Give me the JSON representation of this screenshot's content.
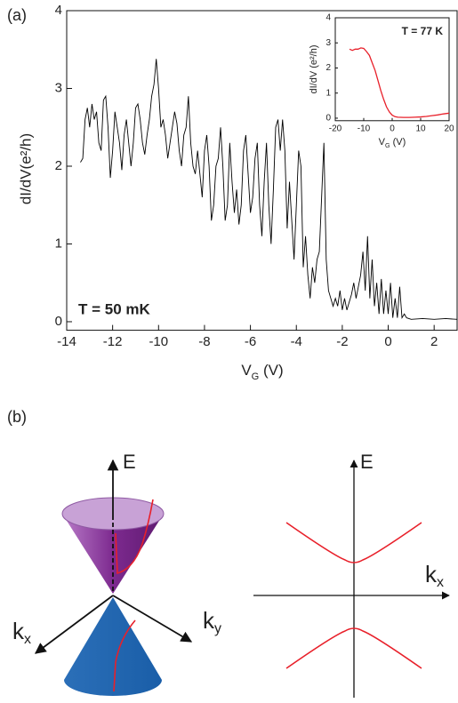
{
  "panel_labels": [
    "(a)",
    "(b)"
  ],
  "chart_data": [
    {
      "type": "line",
      "y_label": "dI/dV(e²/h)",
      "x_label": [
        "V",
        "G",
        " (V)"
      ],
      "annotation": "T = 50 mK",
      "xlim": [
        -14,
        3
      ],
      "ylim": [
        -0.11,
        4
      ],
      "xticks": [
        -14,
        -12,
        -10,
        -8,
        -6,
        -4,
        -2,
        0,
        2
      ],
      "yticks": [
        0,
        1,
        2,
        3,
        4
      ],
      "series": [
        {
          "color": "#000000",
          "x": [
            -13.4,
            -13.3,
            -13.2,
            -13.1,
            -13.0,
            -12.9,
            -12.8,
            -12.7,
            -12.6,
            -12.5,
            -12.4,
            -12.3,
            -12.2,
            -12.1,
            -12.0,
            -11.9,
            -11.8,
            -11.7,
            -11.6,
            -11.5,
            -11.4,
            -11.3,
            -11.2,
            -11.1,
            -11.0,
            -10.9,
            -10.8,
            -10.7,
            -10.6,
            -10.5,
            -10.4,
            -10.3,
            -10.2,
            -10.1,
            -10.0,
            -9.9,
            -9.8,
            -9.7,
            -9.6,
            -9.5,
            -9.4,
            -9.3,
            -9.2,
            -9.1,
            -9.0,
            -8.9,
            -8.8,
            -8.7,
            -8.6,
            -8.5,
            -8.4,
            -8.3,
            -8.2,
            -8.1,
            -8.0,
            -7.9,
            -7.8,
            -7.7,
            -7.6,
            -7.5,
            -7.4,
            -7.3,
            -7.2,
            -7.1,
            -7.0,
            -6.9,
            -6.8,
            -6.7,
            -6.6,
            -6.5,
            -6.4,
            -6.3,
            -6.2,
            -6.1,
            -6.0,
            -5.9,
            -5.8,
            -5.7,
            -5.6,
            -5.5,
            -5.4,
            -5.3,
            -5.2,
            -5.1,
            -5.0,
            -4.9,
            -4.8,
            -4.7,
            -4.6,
            -4.5,
            -4.4,
            -4.3,
            -4.2,
            -4.1,
            -4.0,
            -3.9,
            -3.8,
            -3.7,
            -3.6,
            -3.5,
            -3.4,
            -3.3,
            -3.2,
            -3.1,
            -3.0,
            -2.9,
            -2.8,
            -2.7,
            -2.6,
            -2.5,
            -2.4,
            -2.3,
            -2.2,
            -2.1,
            -2.0,
            -1.9,
            -1.8,
            -1.7,
            -1.6,
            -1.5,
            -1.4,
            -1.3,
            -1.2,
            -1.1,
            -1.0,
            -0.9,
            -0.8,
            -0.7,
            -0.6,
            -0.5,
            -0.4,
            -0.3,
            -0.2,
            -0.1,
            0.0,
            0.1,
            0.2,
            0.3,
            0.4,
            0.5,
            0.6,
            0.7,
            0.8,
            1.0,
            1.5,
            2.0,
            2.5,
            3.0
          ],
          "values": [
            2.05,
            2.1,
            2.6,
            2.75,
            2.5,
            2.8,
            2.6,
            2.7,
            2.3,
            2.2,
            2.85,
            2.9,
            2.5,
            1.85,
            2.2,
            2.7,
            2.5,
            2.3,
            1.95,
            2.4,
            2.6,
            2.3,
            2.0,
            2.3,
            2.75,
            2.8,
            2.6,
            2.3,
            2.15,
            2.4,
            2.6,
            2.9,
            3.05,
            3.38,
            3.0,
            2.5,
            2.6,
            2.4,
            2.1,
            2.3,
            2.5,
            2.7,
            2.55,
            2.2,
            2.0,
            2.4,
            2.5,
            2.9,
            2.3,
            2.0,
            1.9,
            2.2,
            1.9,
            1.6,
            2.2,
            2.4,
            2.0,
            1.3,
            1.5,
            2.0,
            2.1,
            2.5,
            2.0,
            1.3,
            1.5,
            2.3,
            1.8,
            1.4,
            1.7,
            1.25,
            1.5,
            2.2,
            2.4,
            1.9,
            1.4,
            1.6,
            2.1,
            2.3,
            1.5,
            1.1,
            1.8,
            2.3,
            1.5,
            1.0,
            1.7,
            2.5,
            2.6,
            2.2,
            2.6,
            2.2,
            1.2,
            1.8,
            1.3,
            0.8,
            1.5,
            2.2,
            2.0,
            0.7,
            1.1,
            0.6,
            0.3,
            0.7,
            0.5,
            0.8,
            0.9,
            1.6,
            2.3,
            0.8,
            0.4,
            0.3,
            0.2,
            0.3,
            0.2,
            0.4,
            0.15,
            0.3,
            0.15,
            0.25,
            0.35,
            0.5,
            0.3,
            0.45,
            0.6,
            0.9,
            0.4,
            1.1,
            0.3,
            0.8,
            0.2,
            0.5,
            0.1,
            0.55,
            0.1,
            0.4,
            0.1,
            0.5,
            0.05,
            0.3,
            0.05,
            0.45,
            0.05,
            0.1,
            0.05,
            0.03,
            0.04,
            0.03,
            0.04,
            0.03
          ]
        }
      ]
    },
    {
      "type": "line",
      "y_label": "dI/dV (e²/h)",
      "x_label": [
        "V",
        "G",
        " (V)"
      ],
      "annotation": "T = 77 K",
      "xlim": [
        -20,
        20
      ],
      "ylim": [
        -0.1,
        4
      ],
      "xticks": [
        -20,
        -10,
        0,
        10,
        20
      ],
      "yticks": [
        0,
        1,
        2,
        3,
        4
      ],
      "series": [
        {
          "color": "#e8202a",
          "x": [
            -15,
            -14,
            -13,
            -12,
            -11,
            -10,
            -9,
            -8,
            -7,
            -6,
            -5,
            -4,
            -3,
            -2,
            -1,
            0,
            1,
            2,
            4,
            6,
            8,
            10,
            12,
            14,
            16,
            18,
            20
          ],
          "values": [
            2.75,
            2.7,
            2.75,
            2.75,
            2.8,
            2.78,
            2.65,
            2.5,
            2.2,
            1.9,
            1.5,
            1.1,
            0.75,
            0.45,
            0.25,
            0.12,
            0.06,
            0.04,
            0.03,
            0.03,
            0.04,
            0.05,
            0.07,
            0.1,
            0.13,
            0.17,
            0.2
          ]
        }
      ]
    }
  ],
  "diagram": {
    "cone_labels": {
      "energy": "E",
      "kx": [
        "k",
        "x"
      ],
      "ky": [
        "k",
        "y"
      ]
    },
    "band_labels": {
      "energy": "E",
      "kx": [
        "k",
        "x"
      ]
    }
  }
}
